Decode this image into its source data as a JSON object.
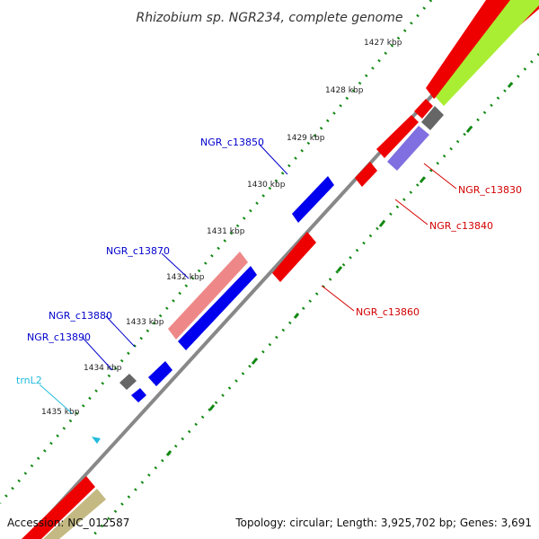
{
  "title": "Rhizobium sp. NGR234, complete genome",
  "footer": {
    "accession": "Accession: NC_012587",
    "summary": "Topology: circular; Length: 3,925,702 bp; Genes: 3,691"
  },
  "ruler": {
    "labels": [
      "1427 kbp",
      "1428 kbp",
      "1429 kbp",
      "1430 kbp",
      "1431 kbp",
      "1432 kbp",
      "1433 kbp",
      "1434 kbp",
      "1435 kbp"
    ]
  },
  "genes": [
    {
      "name": "NGR_c13830",
      "color": "#d40000"
    },
    {
      "name": "NGR_c13840",
      "color": "#d40000"
    },
    {
      "name": "NGR_c13850",
      "color": "#0000cc"
    },
    {
      "name": "NGR_c13860",
      "color": "#d40000"
    },
    {
      "name": "NGR_c13870",
      "color": "#0000cc"
    },
    {
      "name": "NGR_c13880",
      "color": "#0000cc"
    },
    {
      "name": "NGR_c13890",
      "color": "#0000cc"
    },
    {
      "name": "trnL2",
      "color": "#22bbdd"
    }
  ],
  "feature_colors": {
    "forward_cds": "#0000ee",
    "reverse_cds": "#ee0000",
    "pseudo_forward": "#ee8888",
    "gray_feature": "#666666",
    "purple_feature": "#7f6fe0",
    "lime_feature": "#aaee33",
    "olive_feature": "#c4b982",
    "trna": "#22bbdd",
    "backbone": "#888888",
    "tick_marks": "#118811"
  }
}
